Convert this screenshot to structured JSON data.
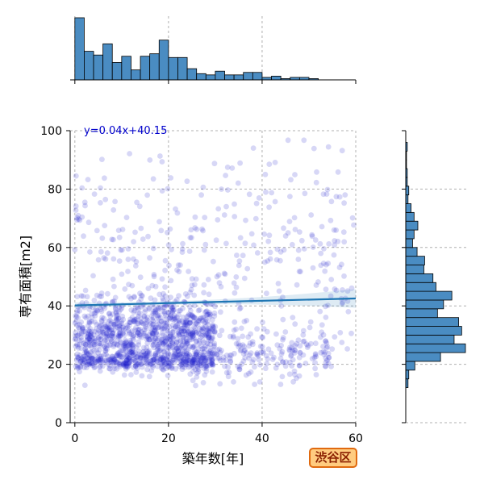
{
  "badge": "渋谷区",
  "chart_data": {
    "type": "scatter",
    "xlabel": "築年数[年]",
    "ylabel": "専有面積[m2]",
    "xlim": [
      -1,
      60
    ],
    "ylim": [
      0,
      100
    ],
    "xticks": [
      0,
      20,
      40,
      60
    ],
    "yticks": [
      0,
      20,
      40,
      60,
      80,
      100
    ],
    "grid": true,
    "point_color": "#2222cc",
    "regression": {
      "equation": "y=0.04x+40.15",
      "slope": 0.04,
      "intercept": 40.15,
      "color": "#1f77b4",
      "equation_color": "#0000cc"
    },
    "point_clusters": [
      {
        "x_range": [
          0,
          60
        ],
        "y_range": [
          10,
          100
        ],
        "count": 380
      },
      {
        "x_range": [
          0,
          30
        ],
        "y_range": [
          15,
          45
        ],
        "count": 900
      },
      {
        "x_range": [
          0,
          30
        ],
        "y_range": [
          18,
          25
        ],
        "count": 300
      },
      {
        "x_range": [
          25,
          55
        ],
        "y_range": [
          12,
          35
        ],
        "count": 200
      }
    ],
    "top_histogram": {
      "bins_start": 0,
      "bin_width": 2,
      "counts": [
        50,
        23,
        20,
        29,
        14,
        19,
        8,
        19,
        21,
        32,
        18,
        18,
        9,
        5,
        4,
        7,
        4,
        4,
        6,
        6,
        2,
        3,
        1,
        2,
        2,
        1,
        0
      ]
    },
    "right_histogram": {
      "bins_start": 0,
      "bin_width": 3,
      "counts": [
        0,
        0,
        0,
        0,
        3,
        4,
        12,
        46,
        79,
        64,
        74,
        70,
        42,
        50,
        61,
        40,
        36,
        24,
        25,
        15,
        9,
        11,
        16,
        11,
        7,
        3,
        4,
        2,
        2,
        1,
        1,
        2,
        0
      ]
    }
  }
}
